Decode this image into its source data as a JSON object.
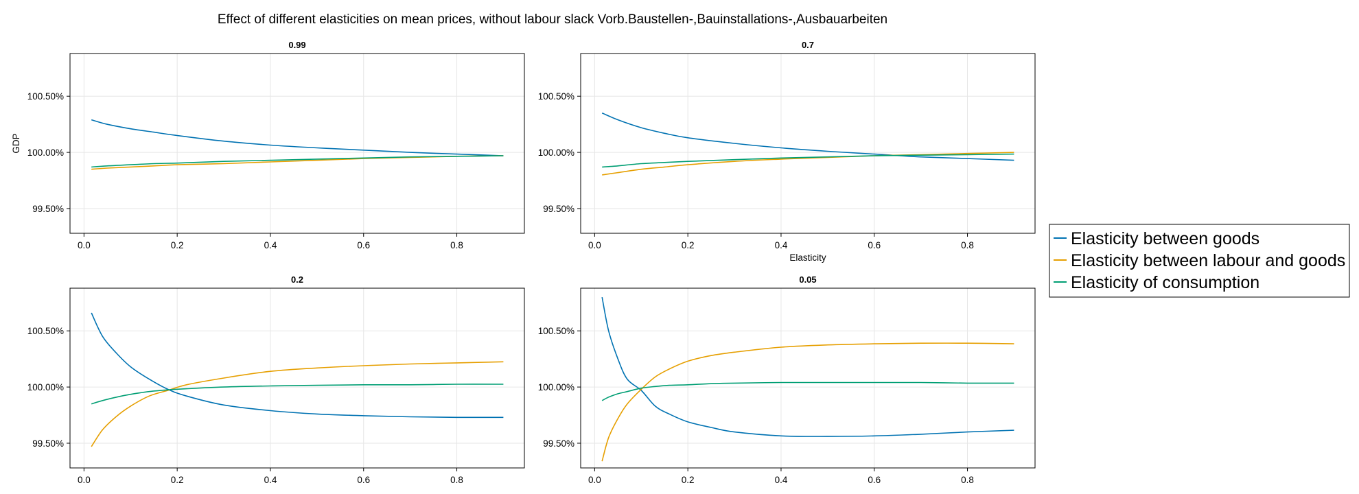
{
  "figure_title": "Effect of different elasticities on mean prices, without labour slack Vorb.Baustellen-,Bauinstallations-,Ausbauarbeiten",
  "colors": {
    "Elasticity between goods": "#0072B2",
    "Elasticity between labour and goods": "#E69F00",
    "Elasticity of consumption": "#009E73"
  },
  "legend": {
    "placement": "right",
    "entries": [
      "Elasticity between goods",
      "Elasticity between labour and goods",
      "Elasticity of consumption"
    ]
  },
  "chart_data": [
    {
      "type": "line",
      "title": "0.99",
      "xlabel": "",
      "ylabel": "GDP",
      "xlim": [
        -0.03,
        0.945
      ],
      "ylim": [
        99.28,
        100.88
      ],
      "xticks": [
        0.0,
        0.2,
        0.4,
        0.6,
        0.8
      ],
      "xtick_labels": [
        "0.0",
        "0.2",
        "0.4",
        "0.6",
        "0.8"
      ],
      "yticks": [
        99.5,
        100.0,
        100.5
      ],
      "ytick_labels": [
        "99.50%",
        "100.00%",
        "100.50%"
      ],
      "grid": true,
      "x": [
        0.016,
        0.05,
        0.1,
        0.15,
        0.2,
        0.3,
        0.4,
        0.5,
        0.6,
        0.7,
        0.8,
        0.9
      ],
      "series": [
        {
          "name": "Elasticity between goods",
          "values": [
            100.29,
            100.25,
            100.21,
            100.18,
            100.15,
            100.1,
            100.065,
            100.04,
            100.02,
            100.0,
            99.985,
            99.97
          ]
        },
        {
          "name": "Elasticity between labour and goods",
          "values": [
            99.85,
            99.86,
            99.87,
            99.88,
            99.89,
            99.9,
            99.915,
            99.93,
            99.945,
            99.955,
            99.965,
            99.97
          ]
        },
        {
          "name": "Elasticity of consumption",
          "values": [
            99.87,
            99.88,
            99.89,
            99.9,
            99.905,
            99.92,
            99.93,
            99.94,
            99.95,
            99.96,
            99.965,
            99.97
          ]
        }
      ]
    },
    {
      "type": "line",
      "title": "0.7",
      "xlabel": "Elasticity",
      "ylabel": "",
      "xlim": [
        -0.03,
        0.945
      ],
      "ylim": [
        99.28,
        100.88
      ],
      "xticks": [
        0.0,
        0.2,
        0.4,
        0.6,
        0.8
      ],
      "xtick_labels": [
        "0.0",
        "0.2",
        "0.4",
        "0.6",
        "0.8"
      ],
      "yticks": [
        99.5,
        100.0,
        100.5
      ],
      "ytick_labels": [
        "99.50%",
        "100.00%",
        "100.50%"
      ],
      "grid": true,
      "x": [
        0.016,
        0.05,
        0.1,
        0.15,
        0.2,
        0.3,
        0.4,
        0.5,
        0.6,
        0.7,
        0.8,
        0.9
      ],
      "series": [
        {
          "name": "Elasticity between goods",
          "values": [
            100.35,
            100.29,
            100.22,
            100.17,
            100.13,
            100.08,
            100.04,
            100.01,
            99.985,
            99.96,
            99.945,
            99.93
          ]
        },
        {
          "name": "Elasticity between labour and goods",
          "values": [
            99.8,
            99.82,
            99.85,
            99.87,
            99.89,
            99.92,
            99.94,
            99.955,
            99.97,
            99.98,
            99.99,
            100.0
          ]
        },
        {
          "name": "Elasticity of consumption",
          "values": [
            99.87,
            99.88,
            99.9,
            99.91,
            99.92,
            99.935,
            99.95,
            99.96,
            99.97,
            99.975,
            99.98,
            99.985
          ]
        }
      ]
    },
    {
      "type": "line",
      "title": "0.2",
      "xlabel": "",
      "ylabel": "",
      "xlim": [
        -0.03,
        0.945
      ],
      "ylim": [
        99.28,
        100.88
      ],
      "xticks": [
        0.0,
        0.2,
        0.4,
        0.6,
        0.8
      ],
      "xtick_labels": [
        "0.0",
        "0.2",
        "0.4",
        "0.6",
        "0.8"
      ],
      "yticks": [
        99.5,
        100.0,
        100.5
      ],
      "ytick_labels": [
        "99.50%",
        "100.00%",
        "100.50%"
      ],
      "grid": true,
      "x": [
        0.016,
        0.04,
        0.07,
        0.1,
        0.14,
        0.18,
        0.22,
        0.3,
        0.4,
        0.5,
        0.6,
        0.7,
        0.8,
        0.9
      ],
      "series": [
        {
          "name": "Elasticity between goods",
          "values": [
            100.66,
            100.45,
            100.3,
            100.18,
            100.07,
            99.98,
            99.92,
            99.84,
            99.79,
            99.76,
            99.745,
            99.735,
            99.73,
            99.73
          ]
        },
        {
          "name": "Elasticity between labour and goods",
          "values": [
            99.47,
            99.62,
            99.74,
            99.83,
            99.92,
            99.97,
            100.02,
            100.08,
            100.14,
            100.17,
            100.19,
            100.205,
            100.215,
            100.225
          ]
        },
        {
          "name": "Elasticity of consumption",
          "values": [
            99.85,
            99.88,
            99.91,
            99.935,
            99.96,
            99.975,
            99.985,
            100.0,
            100.01,
            100.015,
            100.02,
            100.02,
            100.025,
            100.025
          ]
        }
      ]
    },
    {
      "type": "line",
      "title": "0.05",
      "xlabel": "",
      "ylabel": "",
      "xlim": [
        -0.03,
        0.945
      ],
      "ylim": [
        99.28,
        100.88
      ],
      "xticks": [
        0.0,
        0.2,
        0.4,
        0.6,
        0.8
      ],
      "xtick_labels": [
        "0.0",
        "0.2",
        "0.4",
        "0.6",
        "0.8"
      ],
      "yticks": [
        99.5,
        100.0,
        100.5
      ],
      "ytick_labels": [
        "99.50%",
        "100.00%",
        "100.50%"
      ],
      "grid": true,
      "x": [
        0.016,
        0.03,
        0.05,
        0.07,
        0.1,
        0.13,
        0.16,
        0.2,
        0.25,
        0.3,
        0.4,
        0.5,
        0.6,
        0.7,
        0.8,
        0.9
      ],
      "series": [
        {
          "name": "Elasticity between goods",
          "values": [
            100.8,
            100.5,
            100.25,
            100.07,
            99.97,
            99.83,
            99.76,
            99.69,
            99.64,
            99.6,
            99.565,
            99.56,
            99.565,
            99.58,
            99.6,
            99.615
          ]
        },
        {
          "name": "Elasticity between labour and goods",
          "values": [
            99.34,
            99.55,
            99.72,
            99.85,
            99.98,
            100.09,
            100.16,
            100.23,
            100.28,
            100.31,
            100.355,
            100.375,
            100.385,
            100.39,
            100.39,
            100.385
          ]
        },
        {
          "name": "Elasticity of consumption",
          "values": [
            99.88,
            99.91,
            99.94,
            99.96,
            99.99,
            100.005,
            100.015,
            100.02,
            100.03,
            100.035,
            100.04,
            100.04,
            100.04,
            100.04,
            100.035,
            100.035
          ]
        }
      ]
    }
  ]
}
